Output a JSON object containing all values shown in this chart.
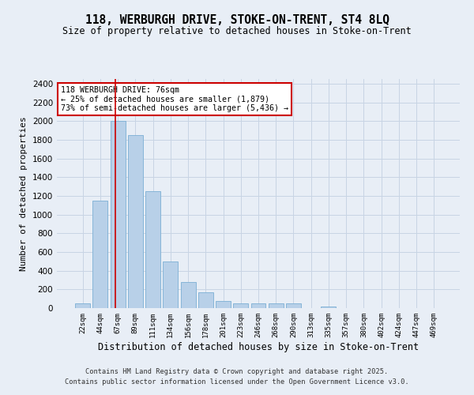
{
  "title_line1": "118, WERBURGH DRIVE, STOKE-ON-TRENT, ST4 8LQ",
  "title_line2": "Size of property relative to detached houses in Stoke-on-Trent",
  "xlabel": "Distribution of detached houses by size in Stoke-on-Trent",
  "ylabel": "Number of detached properties",
  "categories": [
    "22sqm",
    "44sqm",
    "67sqm",
    "89sqm",
    "111sqm",
    "134sqm",
    "156sqm",
    "178sqm",
    "201sqm",
    "223sqm",
    "246sqm",
    "268sqm",
    "290sqm",
    "313sqm",
    "335sqm",
    "357sqm",
    "380sqm",
    "402sqm",
    "424sqm",
    "447sqm",
    "469sqm"
  ],
  "values": [
    50,
    1150,
    2000,
    1850,
    1250,
    500,
    275,
    170,
    80,
    50,
    50,
    50,
    50,
    0,
    20,
    0,
    0,
    0,
    0,
    0,
    0
  ],
  "bar_color": "#b8d0e8",
  "bar_edge_color": "#7bafd4",
  "grid_color": "#c8d4e4",
  "background_color": "#e8eef6",
  "vline_color": "#cc0000",
  "vline_pos": 1.85,
  "annotation_text": "118 WERBURGH DRIVE: 76sqm\n← 25% of detached houses are smaller (1,879)\n73% of semi-detached houses are larger (5,436) →",
  "annotation_box_facecolor": "#ffffff",
  "annotation_box_edgecolor": "#cc0000",
  "ylim": [
    0,
    2450
  ],
  "yticks": [
    0,
    200,
    400,
    600,
    800,
    1000,
    1200,
    1400,
    1600,
    1800,
    2000,
    2200,
    2400
  ],
  "footer_line1": "Contains HM Land Registry data © Crown copyright and database right 2025.",
  "footer_line2": "Contains public sector information licensed under the Open Government Licence v3.0."
}
